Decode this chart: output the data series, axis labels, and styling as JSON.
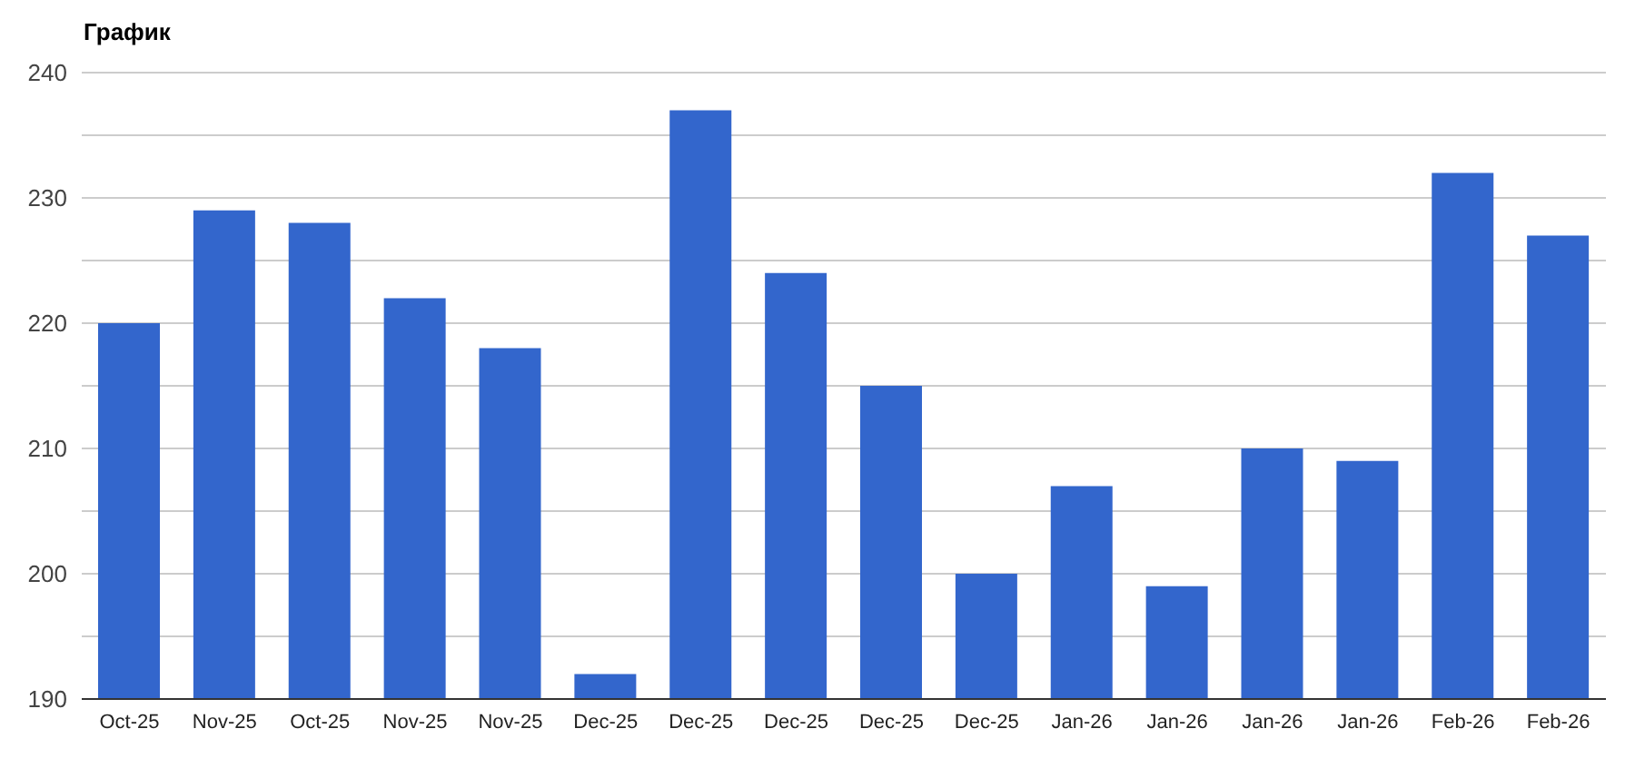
{
  "chart_data": {
    "type": "bar",
    "title": "График",
    "categories": [
      "Oct-25",
      "Nov-25",
      "Oct-25",
      "Nov-25",
      "Nov-25",
      "Dec-25",
      "Dec-25",
      "Dec-25",
      "Dec-25",
      "Dec-25",
      "Jan-26",
      "Jan-26",
      "Jan-26",
      "Jan-26",
      "Feb-26",
      "Feb-26"
    ],
    "values": [
      220,
      229,
      228,
      222,
      218,
      192,
      237,
      224,
      215,
      200,
      207,
      199,
      210,
      209,
      232,
      227
    ],
    "color": "#3366cc",
    "ylim": [
      190,
      240
    ],
    "yticks": [
      190,
      {
        "value": 195,
        "label": null
      },
      200,
      {
        "value": 205,
        "label": null
      },
      210,
      {
        "value": 215,
        "label": null
      },
      220,
      {
        "value": 225,
        "label": null
      },
      230,
      {
        "value": 235,
        "label": null
      },
      240
    ],
    "grid": "y"
  }
}
